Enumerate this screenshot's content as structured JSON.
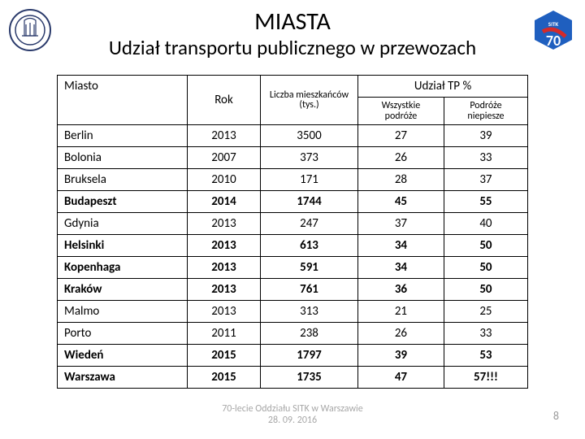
{
  "title": "MIASTA",
  "subtitle": "Udział transportu publicznego w przewozach",
  "headers": {
    "miasto": "Miasto",
    "rok": "Rok",
    "liczba": "Liczba mieszkańców (tys.)",
    "udzial": "Udział TP %",
    "wszystkie": "Wszystkie podróże",
    "niepiesze": "Podróże niepiesze"
  },
  "rows": [
    {
      "miasto": "Berlin",
      "rok": "2013",
      "liczba": "3500",
      "wszystkie": "27",
      "niepiesze": "39",
      "bold": false
    },
    {
      "miasto": "Bolonia",
      "rok": "2007",
      "liczba": "373",
      "wszystkie": "26",
      "niepiesze": "33",
      "bold": false
    },
    {
      "miasto": "Bruksela",
      "rok": "2010",
      "liczba": "171",
      "wszystkie": "28",
      "niepiesze": "37",
      "bold": false
    },
    {
      "miasto": "Budapeszt",
      "rok": "2014",
      "liczba": "1744",
      "wszystkie": "45",
      "niepiesze": "55",
      "bold": true
    },
    {
      "miasto": "Gdynia",
      "rok": "2013",
      "liczba": "247",
      "wszystkie": "37",
      "niepiesze": "40",
      "bold": false
    },
    {
      "miasto": "Helsinki",
      "rok": "2013",
      "liczba": "613",
      "wszystkie": "34",
      "niepiesze": "50",
      "bold": true
    },
    {
      "miasto": "Kopenhaga",
      "rok": "2013",
      "liczba": "591",
      "wszystkie": "34",
      "niepiesze": "50",
      "bold": true
    },
    {
      "miasto": "Kraków",
      "rok": "2013",
      "liczba": "761",
      "wszystkie": "36",
      "niepiesze": "50",
      "bold": true
    },
    {
      "miasto": "Malmo",
      "rok": "2013",
      "liczba": "313",
      "wszystkie": "21",
      "niepiesze": "25",
      "bold": false
    },
    {
      "miasto": "Porto",
      "rok": "2011",
      "liczba": "238",
      "wszystkie": "26",
      "niepiesze": "33",
      "bold": false
    },
    {
      "miasto": "Wiedeń",
      "rok": "2015",
      "liczba": "1797",
      "wszystkie": "39",
      "niepiesze": "53",
      "bold": true
    },
    {
      "miasto": "Warszawa",
      "rok": "2015",
      "liczba": "1735",
      "wszystkie": "47",
      "niepiesze": "57!!!",
      "bold": true
    }
  ],
  "footer": {
    "line1": "70-lecie Oddziału SITK w Warszawie",
    "line2": "28. 09. 2016"
  },
  "pagenum": "8",
  "colors": {
    "logo_left_stroke": "#2a3a6b",
    "logo_right_bg": "#1f5fbf",
    "logo_right_accent": "#d42a2a",
    "logo_right_text": "#ffffff"
  }
}
